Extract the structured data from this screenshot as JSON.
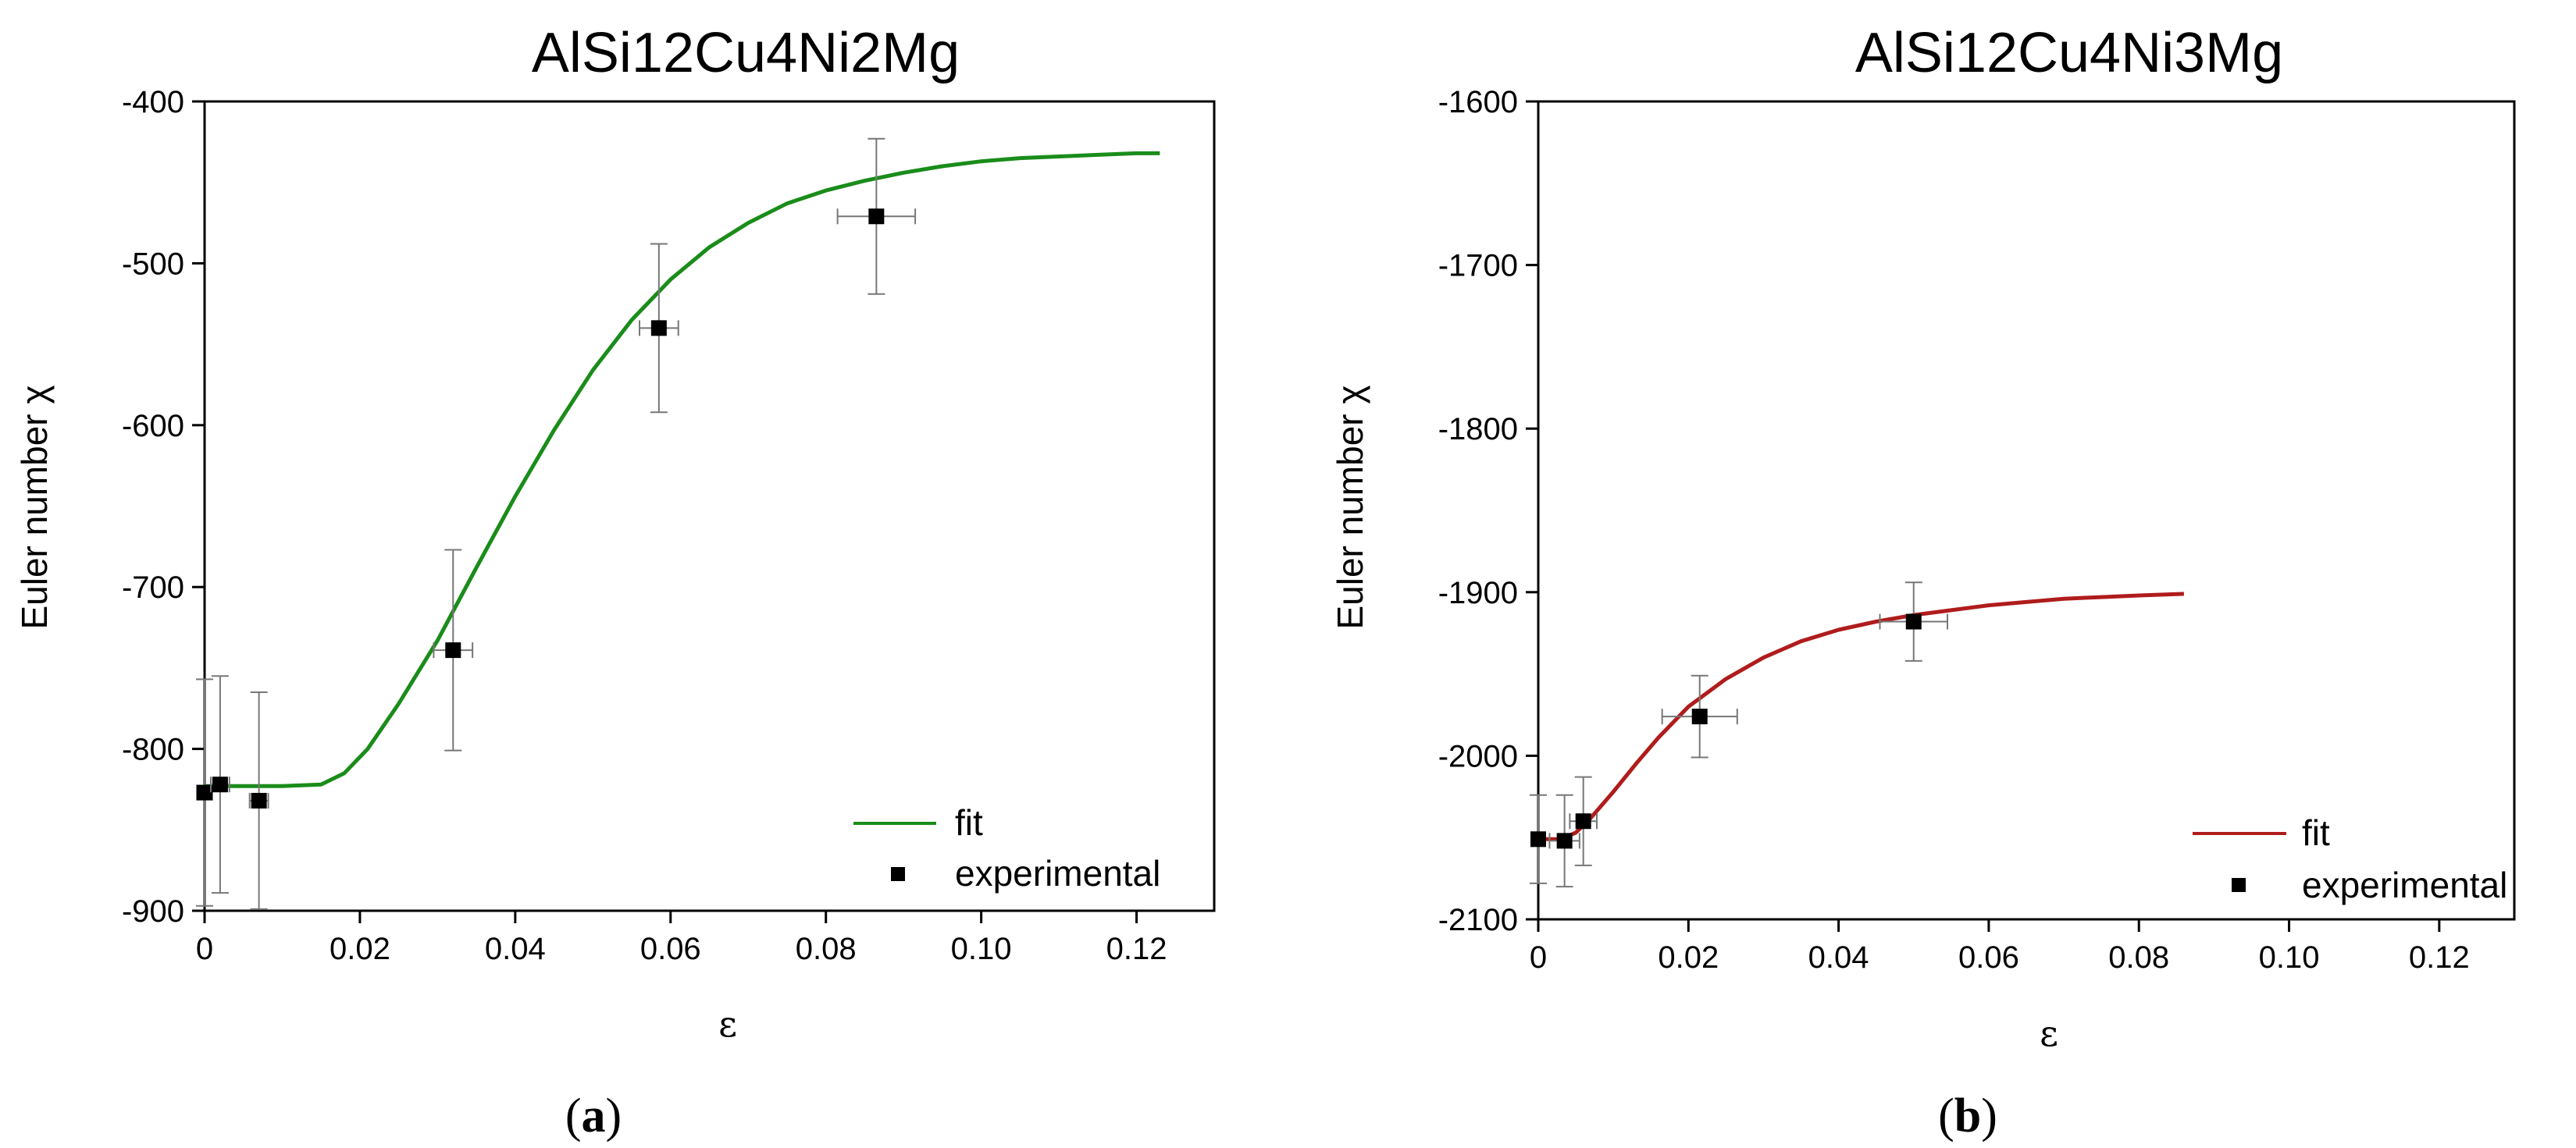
{
  "chart_data": [
    {
      "type": "line",
      "panel_label": {
        "open": "(",
        "letter": "a",
        "close": ")"
      },
      "title": "AlSi12Cu4Ni2Mg",
      "xlabel": "ε",
      "ylabel": "Euler number χ",
      "xlim": [
        0,
        0.13
      ],
      "ylim": [
        -900,
        -400
      ],
      "xticks": [
        "0",
        "0.02",
        "0.04",
        "0.06",
        "0.08",
        "0.10",
        "0.12"
      ],
      "yticks": [
        "-900",
        "-800",
        "-700",
        "-600",
        "-500",
        "-400"
      ],
      "legend_position": "bottom-right",
      "series": [
        {
          "name": "fit",
          "style": "line",
          "color": "#1a8c1a",
          "x": [
            0,
            0.005,
            0.01,
            0.015,
            0.018,
            0.021,
            0.025,
            0.03,
            0.035,
            0.04,
            0.045,
            0.05,
            0.055,
            0.06,
            0.065,
            0.07,
            0.075,
            0.08,
            0.085,
            0.09,
            0.095,
            0.1,
            0.105,
            0.11,
            0.115,
            0.12,
            0.123
          ],
          "y": [
            -823,
            -823,
            -823,
            -822,
            -815,
            -800,
            -772,
            -733,
            -688,
            -644,
            -603,
            -566,
            -535,
            -510,
            -490,
            -475,
            -463,
            -455,
            -449,
            -444,
            -440,
            -437,
            -435,
            -434,
            -433,
            -432,
            -432
          ]
        },
        {
          "name": "experimental",
          "style": "scatter",
          "color": "#000000",
          "x": [
            0,
            0.002,
            0.007,
            0.032,
            0.0585,
            0.0865
          ],
          "y": [
            -827,
            -822,
            -832,
            -739,
            -540,
            -471
          ],
          "yerr": [
            70,
            67,
            67,
            62,
            52,
            48
          ],
          "xerr": [
            0.001,
            0.0012,
            0.0012,
            0.0025,
            0.0025,
            0.005
          ]
        }
      ]
    },
    {
      "type": "line",
      "panel_label": {
        "open": "(",
        "letter": "b",
        "close": ")"
      },
      "title": "AlSi12Cu4Ni3Mg",
      "xlabel": "ε",
      "ylabel": "Euler number χ",
      "xlim": [
        0,
        0.13
      ],
      "ylim": [
        -2100,
        -1600
      ],
      "xticks": [
        "0",
        "0.02",
        "0.04",
        "0.06",
        "0.08",
        "0.10",
        "0.12"
      ],
      "yticks": [
        "-2100",
        "-2000",
        "-1900",
        "-1800",
        "-1700",
        "-1600"
      ],
      "legend_position": "bottom-right",
      "series": [
        {
          "name": "fit",
          "style": "line",
          "color": "#b01c1c",
          "x": [
            0,
            0.003,
            0.005,
            0.007,
            0.01,
            0.013,
            0.016,
            0.02,
            0.025,
            0.03,
            0.035,
            0.04,
            0.045,
            0.05,
            0.055,
            0.06,
            0.065,
            0.07,
            0.075,
            0.08,
            0.086
          ],
          "y": [
            -2051,
            -2051,
            -2047,
            -2038,
            -2022,
            -2005,
            -1989,
            -1970,
            -1953,
            -1940,
            -1930,
            -1923,
            -1918,
            -1914,
            -1911,
            -1908,
            -1906,
            -1904,
            -1903,
            -1902,
            -1901
          ]
        },
        {
          "name": "experimental",
          "style": "scatter",
          "color": "#000000",
          "x": [
            0,
            0.0035,
            0.006,
            0.0215,
            0.05
          ],
          "y": [
            -2051,
            -2052,
            -2040,
            -1976,
            -1918
          ],
          "yerr": [
            27,
            28,
            27,
            25,
            24
          ],
          "xerr": [
            0.0008,
            0.002,
            0.0018,
            0.005,
            0.0045
          ]
        }
      ]
    }
  ]
}
